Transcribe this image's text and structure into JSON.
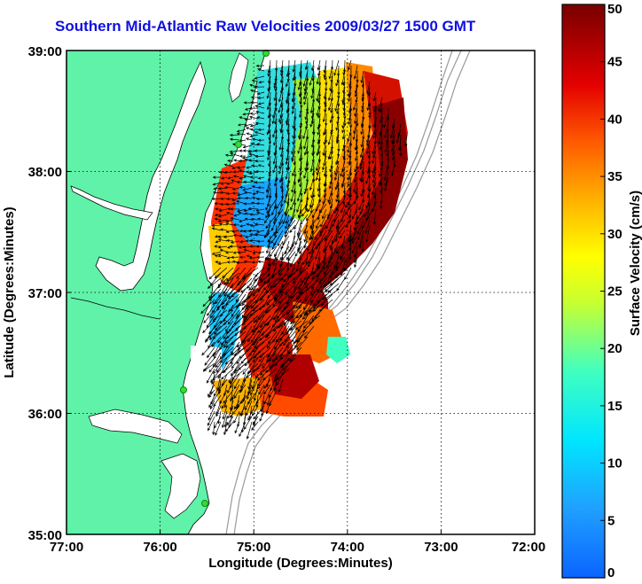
{
  "title": "Southern Mid-Atlantic Raw Velocities 2009/03/27 1500 GMT",
  "chart_data": {
    "type": "heatmap",
    "xlabel": "Longitude (Degrees:Minutes)",
    "ylabel": "Latitude (Degrees:Minutes)",
    "x_ticks": [
      "77:00",
      "76:00",
      "75:00",
      "74:00",
      "73:00",
      "72:00"
    ],
    "y_ticks": [
      "39:00",
      "38:00",
      "37:00",
      "36:00",
      "35:00"
    ],
    "xlim": [
      -77,
      -72
    ],
    "ylim": [
      35,
      39
    ],
    "grid": true,
    "colorbar": {
      "label": "Surface Velocity (cm/s)",
      "ticks": [
        "0",
        "5",
        "10",
        "15",
        "20",
        "25",
        "30",
        "35",
        "40",
        "45",
        "50"
      ],
      "range": [
        0,
        50
      ]
    },
    "colors": {
      "land": "#5ff2a8",
      "water": "#ffffff",
      "coastline": "#000000",
      "bathymetry": "#9a9a9a",
      "arrows": "#000000",
      "title": "#1010e0",
      "stations": "#33dd33"
    }
  }
}
